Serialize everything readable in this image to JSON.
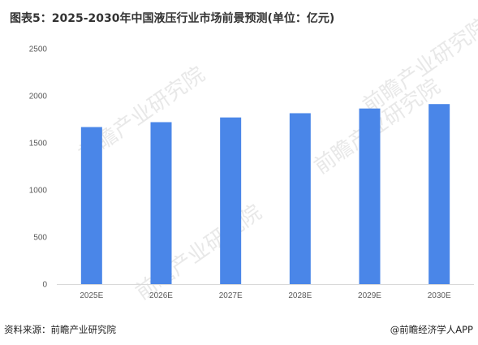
{
  "title": "图表5：2025-2030年中国液压行业市场前景预测(单位：亿元)",
  "source": "资料来源：前瞻产业研究院",
  "credit": "@前瞻经济学人APP",
  "watermark": "前瞻产业研究院",
  "colors": {
    "bar": "#4a86e8",
    "axis": "#d9d9d9"
  },
  "chart_data": {
    "type": "bar",
    "title": "图表5：2025-2030年中国液压行业市场前景预测(单位：亿元)",
    "categories": [
      "2025E",
      "2026E",
      "2027E",
      "2028E",
      "2029E",
      "2030E"
    ],
    "values": [
      1668,
      1720,
      1770,
      1815,
      1865,
      1912
    ],
    "ylim": [
      0,
      2500
    ],
    "yticks": [
      0,
      500,
      1000,
      1500,
      2000,
      2500
    ],
    "grid": false,
    "xlabel": "",
    "ylabel": ""
  }
}
